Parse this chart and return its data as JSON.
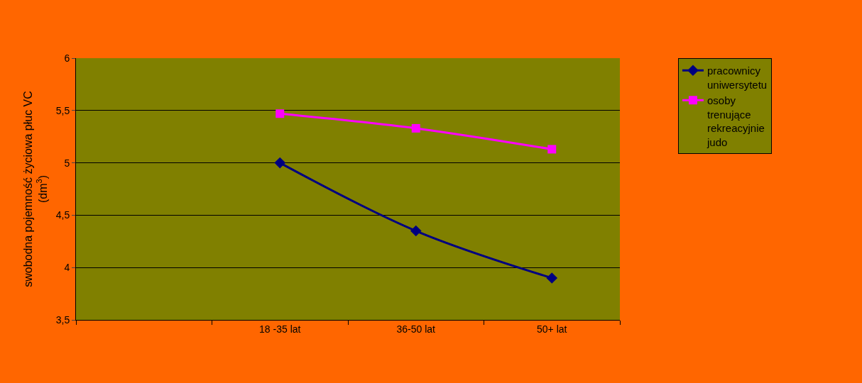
{
  "chart_data": {
    "type": "line",
    "ylabel": "swobodna pojemność życiowa płuc VC (dm$^{3}$)",
    "categories": [
      null,
      "18 -35 lat",
      "36-50 lat",
      "50+ lat"
    ],
    "series": [
      {
        "name": "pracownicy uniwersytetu",
        "color": "#000080",
        "marker": "diamond",
        "values": [
          null,
          5.0,
          4.35,
          3.9
        ]
      },
      {
        "name": "osoby trenujące rekreacyjnie judo",
        "color": "#ff00ff",
        "marker": "square",
        "values": [
          null,
          5.47,
          5.33,
          5.13
        ]
      }
    ],
    "ylim": [
      3.5,
      6
    ],
    "yticks": [
      {
        "value": 3.5,
        "label": "3,5"
      },
      4,
      {
        "value": 4.5,
        "label": "4,5"
      },
      5,
      {
        "value": 5.5,
        "label": "5,5"
      },
      6
    ],
    "grid": "y",
    "legend": "right",
    "line_style": "solid"
  }
}
